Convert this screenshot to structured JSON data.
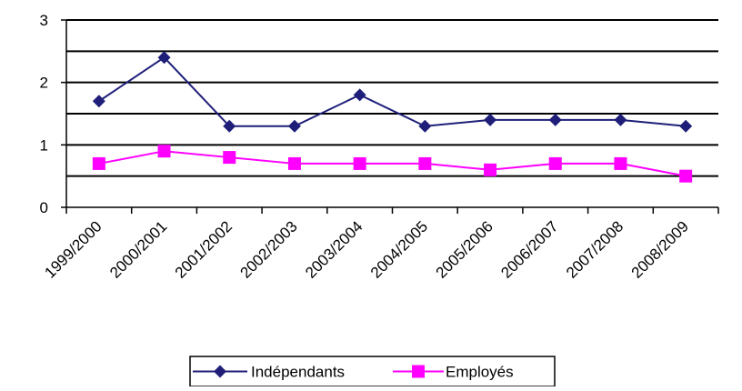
{
  "chart_data": {
    "type": "line",
    "title": "",
    "xlabel": "",
    "ylabel": "",
    "categories": [
      "1999/2000",
      "2000/2001",
      "2001/2002",
      "2002/2003",
      "2003/2004",
      "2004/2005",
      "2005/2006",
      "2006/2007",
      "2007/2008",
      "2008/2009"
    ],
    "ylim": [
      0,
      3
    ],
    "y_ticks": [
      "0",
      "1",
      "2",
      "3"
    ],
    "grid": "horizontal, every 0.5",
    "legend_position": "bottom",
    "series": [
      {
        "name": "Indépendants",
        "color": "#1f1f7a",
        "marker": "diamond",
        "values": [
          1.7,
          2.4,
          1.3,
          1.3,
          1.8,
          1.3,
          1.4,
          1.4,
          1.4,
          1.3
        ]
      },
      {
        "name": "Employés",
        "color": "#ff00ff",
        "marker": "square",
        "values": [
          0.7,
          0.9,
          0.8,
          0.7,
          0.7,
          0.7,
          0.6,
          0.7,
          0.7,
          0.5
        ]
      }
    ]
  }
}
